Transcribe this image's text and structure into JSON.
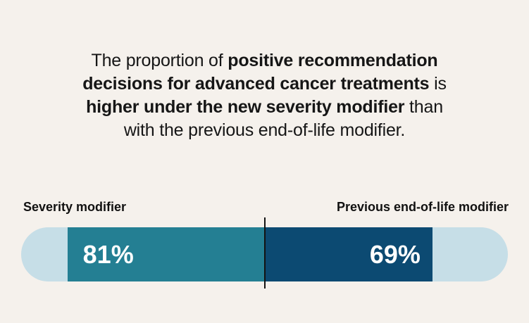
{
  "page": {
    "background_color": "#f5f1ec"
  },
  "headline": {
    "plain_text": "The proportion of positive recommendation decisions for advanced cancer treatments is higher under the new severity modifier than with the previous end-of-life modifier.",
    "lines": [
      [
        {
          "text": "The proportion of ",
          "bold": false
        },
        {
          "text": "positive recommendation",
          "bold": true
        }
      ],
      [
        {
          "text": "decisions for advanced cancer treatments",
          "bold": true
        },
        {
          "text": " is",
          "bold": false
        }
      ],
      [
        {
          "text": "higher under the new severity modifier",
          "bold": true
        },
        {
          "text": " than",
          "bold": false
        }
      ],
      [
        {
          "text": "with the previous end-of-life modifier.",
          "bold": false
        }
      ]
    ]
  },
  "chart_data": {
    "type": "bar",
    "subtype": "opposed-horizontal-fill",
    "title": "The proportion of positive recommendation decisions for advanced cancer treatments is higher under the new severity modifier than with the previous end-of-life modifier.",
    "categories": [
      "Severity modifier",
      "Previous end-of-life modifier"
    ],
    "values": [
      81,
      69
    ],
    "value_labels": [
      "81%",
      "69%"
    ],
    "unit": "%",
    "value_range": [
      0,
      100
    ],
    "layout": "each bar fills its half of a shared pill-shaped track outward from a central divider line",
    "legend_position": "labels above bar ends",
    "grid": false,
    "colors": {
      "severity_bar": "#247f93",
      "previous_bar": "#0c4a72",
      "track": "#c6dee7",
      "divider": "#131313",
      "value_text": "#ffffff",
      "label_text": "#111111",
      "headline_text": "#161616",
      "background": "#f5f1ec"
    }
  }
}
